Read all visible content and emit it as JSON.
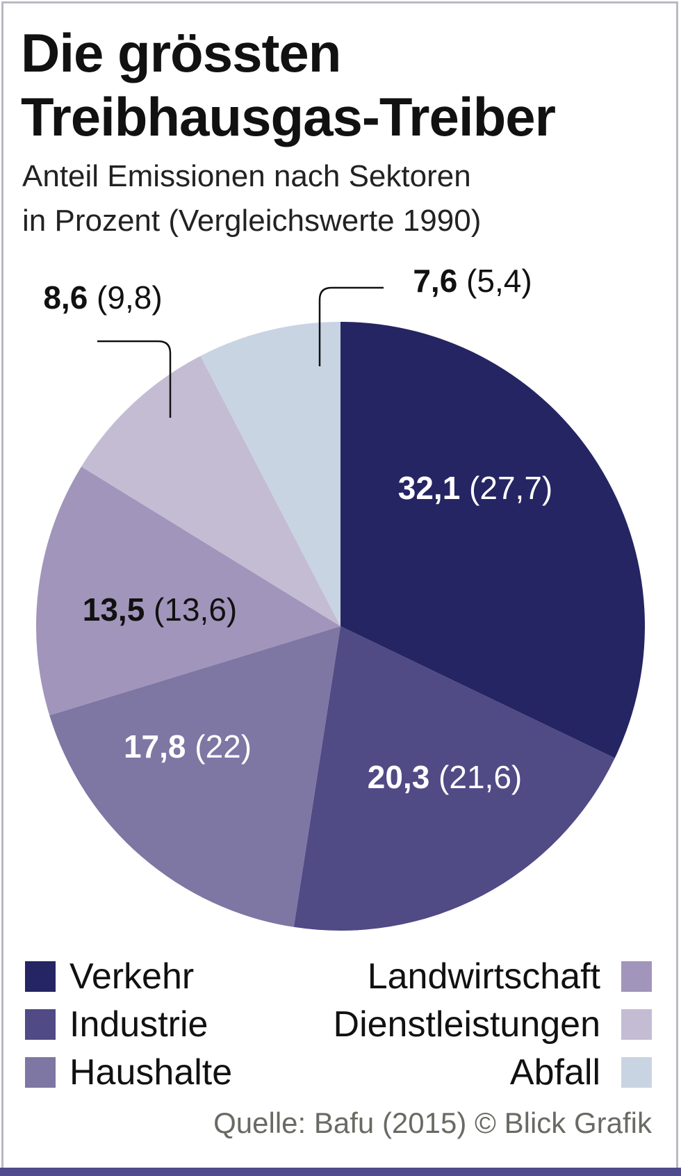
{
  "title_lines": [
    "Die grössten",
    "Treibhausgas-Treiber"
  ],
  "subtitle_lines": [
    "Anteil Emissionen nach Sektoren",
    "in Prozent (Vergleichswerte 1990)"
  ],
  "chart_data": {
    "type": "pie",
    "title": "Die grössten Treibhausgas-Treiber",
    "subtitle": "Anteil Emissionen nach Sektoren in Prozent (Vergleichswerte 1990)",
    "slices": [
      {
        "name": "Verkehr",
        "value": 32.1,
        "value_1990": 27.7,
        "label_main": "32,1",
        "label_ref": "(27,7)",
        "color": "#252563",
        "label_color": "#ffffff"
      },
      {
        "name": "Industrie",
        "value": 20.3,
        "value_1990": 21.6,
        "label_main": "20,3",
        "label_ref": "(21,6)",
        "color": "#504a85",
        "label_color": "#ffffff"
      },
      {
        "name": "Haushalte",
        "value": 17.8,
        "value_1990": 22,
        "label_main": "17,8",
        "label_ref": "(22)",
        "color": "#7e76a3",
        "label_color": "#ffffff"
      },
      {
        "name": "Landwirtschaft",
        "value": 13.5,
        "value_1990": 13.6,
        "label_main": "13,5",
        "label_ref": "(13,6)",
        "color": "#a195bb",
        "label_color": "#111111"
      },
      {
        "name": "Dienstleistungen",
        "value": 8.6,
        "value_1990": 9.8,
        "label_main": "8,6",
        "label_ref": "(9,8)",
        "color": "#c4bcd3",
        "label_color": "#111111"
      },
      {
        "name": "Abfall",
        "value": 7.6,
        "value_1990": 5.4,
        "label_main": "7,6",
        "label_ref": "(5,4)",
        "color": "#c9d4e3",
        "label_color": "#111111"
      }
    ],
    "legend_placement": "bottom"
  },
  "legend": {
    "left": [
      "Verkehr",
      "Industrie",
      "Haushalte"
    ],
    "right": [
      "Landwirtschaft",
      "Dienstleistungen",
      "Abfall"
    ]
  },
  "source": "Quelle: Bafu (2015) © Blick Grafik"
}
